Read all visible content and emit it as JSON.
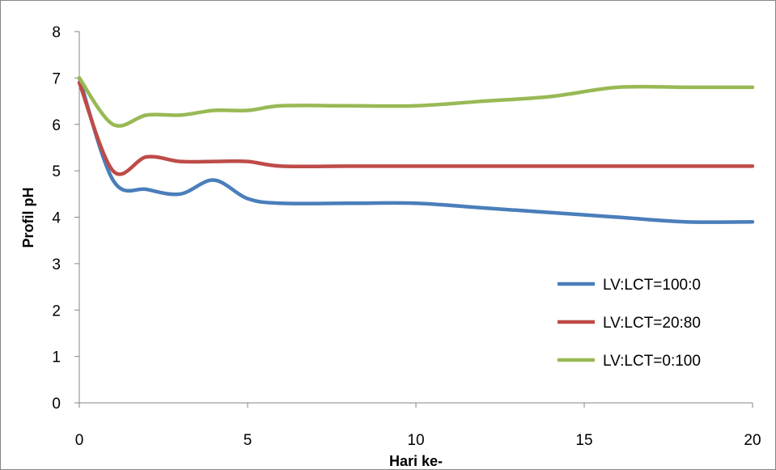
{
  "chart_data": {
    "type": "line",
    "title": "",
    "xlabel": "Hari ke-",
    "ylabel": "Profil pH",
    "xlim": [
      0,
      20
    ],
    "ylim": [
      0,
      8
    ],
    "xticks": [
      0,
      5,
      10,
      15,
      20
    ],
    "yticks": [
      0,
      1,
      2,
      3,
      4,
      5,
      6,
      7,
      8
    ],
    "grid": false,
    "legend_position": "right",
    "series": [
      {
        "name": "LV:LCT=100:0",
        "color": "#4a7ebb",
        "x": [
          0,
          1,
          2,
          3,
          4,
          5,
          6,
          8,
          10,
          12,
          14,
          16,
          18,
          20
        ],
        "y": [
          7.0,
          4.8,
          4.6,
          4.5,
          4.8,
          4.4,
          4.3,
          4.3,
          4.3,
          4.2,
          4.1,
          4.0,
          3.9,
          3.9
        ]
      },
      {
        "name": "LV:LCT=20:80",
        "color": "#be4b48",
        "x": [
          0,
          1,
          2,
          3,
          4,
          5,
          6,
          8,
          10,
          12,
          14,
          16,
          18,
          20
        ],
        "y": [
          6.9,
          5.0,
          5.3,
          5.2,
          5.2,
          5.2,
          5.1,
          5.1,
          5.1,
          5.1,
          5.1,
          5.1,
          5.1,
          5.1
        ]
      },
      {
        "name": "LV:LCT=0:100",
        "color": "#98b954",
        "x": [
          0,
          1,
          2,
          3,
          4,
          5,
          6,
          8,
          10,
          12,
          14,
          16,
          18,
          20
        ],
        "y": [
          7.0,
          6.0,
          6.2,
          6.2,
          6.3,
          6.3,
          6.4,
          6.4,
          6.4,
          6.5,
          6.6,
          6.8,
          6.8,
          6.8
        ]
      }
    ]
  }
}
